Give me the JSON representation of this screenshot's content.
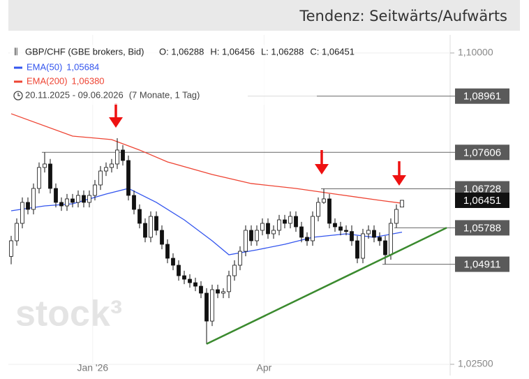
{
  "header": {
    "tendency": "Tendenz: Seitwärts/Aufwärts"
  },
  "chart_data": {
    "type": "candlestick",
    "title": "GBP/CHF (GBE brokers, Bid)",
    "ohlc_labels": [
      "O: 1,06288",
      "H: 1,06456",
      "L: 1,06288",
      "C: 1,06451"
    ],
    "period": "20.11.2025 - 09.06.2026",
    "period_length": "(7 Monate, 1 Tag)",
    "watermark": "stock³",
    "candles": [
      [
        1.051,
        1.05596,
        1.0491,
        1.05476
      ],
      [
        1.05476,
        1.06016,
        1.05356,
        1.05896
      ],
      [
        1.05896,
        1.06521,
        1.05776,
        1.06401
      ],
      [
        1.06401,
        1.06521,
        1.06112,
        1.06232
      ],
      [
        1.06232,
        1.06857,
        1.06112,
        1.06737
      ],
      [
        1.06737,
        1.07362,
        1.06617,
        1.07242
      ],
      [
        1.07242,
        1.07606,
        1.07122,
        1.07326
      ],
      [
        1.07326,
        1.07446,
        1.06617,
        1.06737
      ],
      [
        1.06737,
        1.06857,
        1.06281,
        1.06401
      ],
      [
        1.06401,
        1.06521,
        1.06196,
        1.06316
      ],
      [
        1.06316,
        1.06605,
        1.06196,
        1.06485
      ],
      [
        1.06485,
        1.06605,
        1.06281,
        1.06401
      ],
      [
        1.06401,
        1.06689,
        1.06281,
        1.06569
      ],
      [
        1.06569,
        1.06689,
        1.06281,
        1.06401
      ],
      [
        1.06401,
        1.06689,
        1.06281,
        1.06569
      ],
      [
        1.06569,
        1.06941,
        1.06449,
        1.06821
      ],
      [
        1.06821,
        1.07277,
        1.06701,
        1.07157
      ],
      [
        1.07157,
        1.07362,
        1.07037,
        1.07242
      ],
      [
        1.07242,
        1.07446,
        1.07122,
        1.07326
      ],
      [
        1.07326,
        1.07948,
        1.07206,
        1.07662
      ],
      [
        1.07662,
        1.07782,
        1.0729,
        1.0741
      ],
      [
        1.0741,
        1.0753,
        1.06449,
        1.06569
      ],
      [
        1.06569,
        1.06689,
        1.06112,
        1.06232
      ],
      [
        1.06232,
        1.06352,
        1.05776,
        1.05896
      ],
      [
        1.05896,
        1.06016,
        1.0544,
        1.0556
      ],
      [
        1.0556,
        1.06184,
        1.0544,
        1.06064
      ],
      [
        1.06064,
        1.06184,
        1.05608,
        1.05728
      ],
      [
        1.05728,
        1.05848,
        1.05271,
        1.05391
      ],
      [
        1.05391,
        1.05511,
        1.04935,
        1.05055
      ],
      [
        1.05055,
        1.05175,
        1.04767,
        1.04887
      ],
      [
        1.04887,
        1.05007,
        1.04514,
        1.04634
      ],
      [
        1.04634,
        1.04754,
        1.0443,
        1.0455
      ],
      [
        1.0455,
        1.0467,
        1.04346,
        1.04466
      ],
      [
        1.04466,
        1.04586,
        1.04262,
        1.04382
      ],
      [
        1.04382,
        1.04502,
        1.04094,
        1.04214
      ],
      [
        1.04214,
        1.04334,
        1.02986,
        1.03541
      ],
      [
        1.03541,
        1.04418,
        1.03421,
        1.04298
      ],
      [
        1.04298,
        1.04418,
        1.04094,
        1.04214
      ],
      [
        1.04214,
        1.04334,
        1.04094,
        1.0425
      ],
      [
        1.0425,
        1.04754,
        1.04094,
        1.04634
      ],
      [
        1.04634,
        1.05007,
        1.04514,
        1.04887
      ],
      [
        1.04887,
        1.05343,
        1.04767,
        1.05223
      ],
      [
        1.05223,
        1.05848,
        1.05103,
        1.05728
      ],
      [
        1.05728,
        1.05848,
        1.05356,
        1.05476
      ],
      [
        1.05476,
        1.05848,
        1.05356,
        1.05728
      ],
      [
        1.05728,
        1.06016,
        1.05608,
        1.05896
      ],
      [
        1.05896,
        1.06016,
        1.05524,
        1.05644
      ],
      [
        1.05644,
        1.05848,
        1.05524,
        1.05728
      ],
      [
        1.05728,
        1.061,
        1.05608,
        1.0598
      ],
      [
        1.0598,
        1.061,
        1.05776,
        1.05896
      ],
      [
        1.05896,
        1.06184,
        1.05776,
        1.06064
      ],
      [
        1.06064,
        1.06184,
        1.05692,
        1.05812
      ],
      [
        1.05812,
        1.05932,
        1.0544,
        1.0556
      ],
      [
        1.0556,
        1.0568,
        1.05356,
        1.05476
      ],
      [
        1.05476,
        1.06184,
        1.05356,
        1.06064
      ],
      [
        1.06064,
        1.06521,
        1.05944,
        1.06401
      ],
      [
        1.06401,
        1.06728,
        1.06365,
        1.06485
      ],
      [
        1.06485,
        1.06605,
        1.05776,
        1.05896
      ],
      [
        1.05896,
        1.06016,
        1.05692,
        1.05812
      ],
      [
        1.05812,
        1.05932,
        1.05608,
        1.05728
      ],
      [
        1.05728,
        1.05848,
        1.05608,
        1.057
      ],
      [
        1.057,
        1.05848,
        1.05356,
        1.05476
      ],
      [
        1.05476,
        1.05596,
        1.04935,
        1.05055
      ],
      [
        1.05055,
        1.05764,
        1.04935,
        1.05644
      ],
      [
        1.05644,
        1.05848,
        1.05524,
        1.05728
      ],
      [
        1.05728,
        1.05848,
        1.0544,
        1.0556
      ],
      [
        1.0556,
        1.0568,
        1.05356,
        1.05476
      ],
      [
        1.05476,
        1.05596,
        1.04911,
        1.05139
      ],
      [
        1.05139,
        1.06016,
        1.05019,
        1.05896
      ],
      [
        1.05896,
        1.06352,
        1.05788,
        1.06232
      ],
      [
        1.06288,
        1.06456,
        1.06288,
        1.06451
      ]
    ],
    "series": [
      {
        "name": "EMA(50)",
        "color": "#3355ee",
        "value_label": "1,05684",
        "x": [
          0,
          6,
          11,
          17,
          21,
          26,
          31,
          36,
          39,
          44,
          49,
          54,
          60,
          65,
          70
        ],
        "values": [
          1.06199,
          1.06316,
          1.06367,
          1.06602,
          1.06737,
          1.06401,
          1.0598,
          1.05476,
          1.05139,
          1.05257,
          1.05391,
          1.0556,
          1.05644,
          1.0556,
          1.05684
        ]
      },
      {
        "name": "EMA(200)",
        "color": "#ee4433",
        "value_label": "1,06380",
        "x": [
          0,
          11,
          18,
          23,
          28,
          36,
          43,
          51,
          58,
          66,
          70
        ],
        "values": [
          1.08537,
          1.07998,
          1.07914,
          1.07662,
          1.07376,
          1.07073,
          1.06855,
          1.06737,
          1.06602,
          1.06451,
          1.0638
        ]
      }
    ],
    "trendline": {
      "color": "#3a8a2e",
      "x": [
        35,
        78
      ],
      "values": [
        1.0299,
        1.0579
      ]
    },
    "levels": [
      {
        "value": 1.08961,
        "label": "1,08961"
      },
      {
        "value": 1.07606,
        "label": "1,07606"
      },
      {
        "value": 1.06728,
        "label": "1,06728"
      },
      {
        "value": 1.06451,
        "label": "1,06451"
      },
      {
        "value": 1.05788,
        "label": "1,05788"
      },
      {
        "value": 1.04911,
        "label": "1,04911"
      }
    ],
    "ylim": [
      1.0223,
      1.1052
    ],
    "yticks": [
      {
        "value": 1.1,
        "label": "1,10000"
      },
      {
        "value": 1.025,
        "label": "1,02500"
      }
    ],
    "xticks": [
      {
        "value": 14.6,
        "label": "Jan '26"
      },
      {
        "value": 45.3,
        "label": "Apr"
      }
    ],
    "grid": true
  }
}
